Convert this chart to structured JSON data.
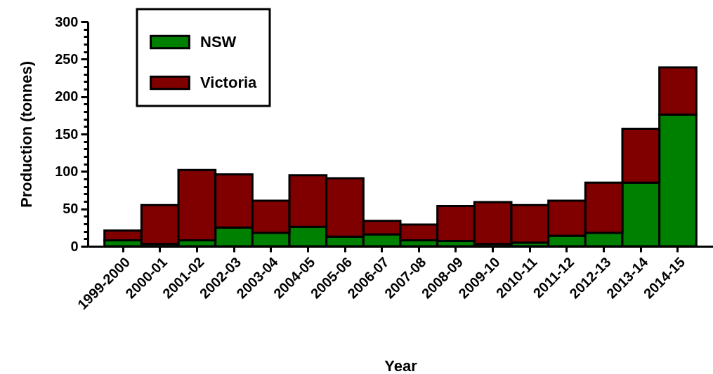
{
  "chart_data": {
    "type": "bar",
    "stacked": true,
    "xlabel": "Year",
    "ylabel": "Production (tonnes)",
    "categories": [
      "1999-2000",
      "2000-01",
      "2001-02",
      "2002-03",
      "2003-04",
      "2004-05",
      "2005-06",
      "2006-07",
      "2007-08",
      "2008-09",
      "2009-10",
      "2010-11",
      "2011-12",
      "2012-13",
      "2013-14",
      "2014-15"
    ],
    "series": [
      {
        "name": "NSW",
        "color": "#008000",
        "values": [
          8,
          3,
          8,
          25,
          18,
          26,
          13,
          16,
          8,
          7,
          3,
          5,
          14,
          18,
          85,
          176
        ]
      },
      {
        "name": "Victoria",
        "color": "#800000",
        "values": [
          13,
          52,
          94,
          71,
          43,
          69,
          78,
          18,
          21,
          47,
          56,
          50,
          47,
          67,
          72,
          63
        ]
      }
    ],
    "ylim": [
      0,
      300
    ],
    "yticks": [
      0,
      {
        "value": 10,
        "label": null
      },
      {
        "value": 20,
        "label": null
      },
      {
        "value": 30,
        "label": null
      },
      {
        "value": 40,
        "label": null
      },
      50,
      {
        "value": 60,
        "label": null
      },
      {
        "value": 70,
        "label": null
      },
      {
        "value": 80,
        "label": null
      },
      {
        "value": 90,
        "label": null
      },
      100,
      {
        "value": 110,
        "label": null
      },
      {
        "value": 120,
        "label": null
      },
      {
        "value": 130,
        "label": null
      },
      {
        "value": 140,
        "label": null
      },
      150,
      {
        "value": 160,
        "label": null
      },
      {
        "value": 170,
        "label": null
      },
      {
        "value": 180,
        "label": null
      },
      {
        "value": 190,
        "label": null
      },
      200,
      {
        "value": 210,
        "label": null
      },
      {
        "value": 220,
        "label": null
      },
      {
        "value": 230,
        "label": null
      },
      {
        "value": 240,
        "label": null
      },
      250,
      {
        "value": 260,
        "label": null
      },
      {
        "value": 270,
        "label": null
      },
      {
        "value": 280,
        "label": null
      },
      {
        "value": 290,
        "label": null
      },
      300
    ],
    "legend": "top left",
    "grid": false
  }
}
